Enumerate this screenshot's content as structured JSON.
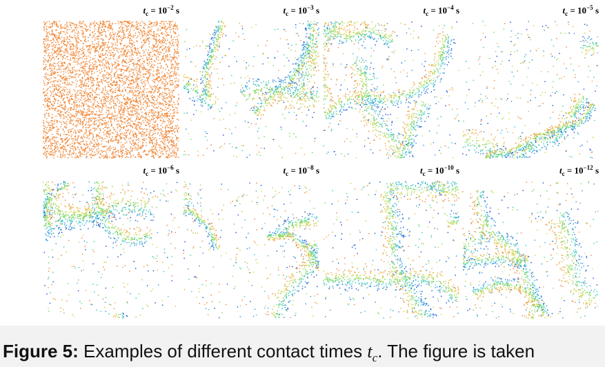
{
  "figure": {
    "panels": [
      {
        "variable": "t",
        "subscript": "c",
        "equals": "= 10",
        "exponent": "−2",
        "unit": "s"
      },
      {
        "variable": "t",
        "subscript": "c",
        "equals": "= 10",
        "exponent": "−3",
        "unit": "s"
      },
      {
        "variable": "t",
        "subscript": "c",
        "equals": "= 10",
        "exponent": "−4",
        "unit": "s"
      },
      {
        "variable": "t",
        "subscript": "c",
        "equals": "= 10",
        "exponent": "−5",
        "unit": "s"
      },
      {
        "variable": "t",
        "subscript": "c",
        "equals": "= 10",
        "exponent": "−6",
        "unit": "s"
      },
      {
        "variable": "t",
        "subscript": "c",
        "equals": "= 10",
        "exponent": "−8",
        "unit": "s"
      },
      {
        "variable": "t",
        "subscript": "c",
        "equals": "= 10",
        "exponent": "−10",
        "unit": "s"
      },
      {
        "variable": "t",
        "subscript": "c",
        "equals": "= 10",
        "exponent": "−12",
        "unit": "s"
      }
    ]
  },
  "caption": {
    "label": "Figure 5:",
    "text_before": "Examples of different contact times",
    "variable": "t",
    "subscript": "c",
    "text_after": ". The figure is taken"
  }
}
